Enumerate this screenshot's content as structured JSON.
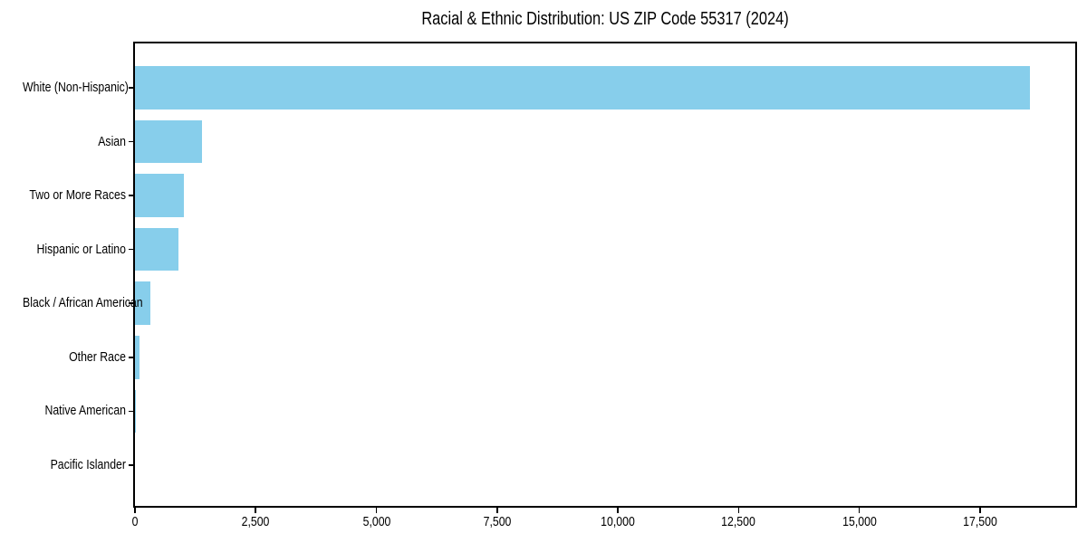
{
  "chart_data": {
    "type": "bar",
    "orientation": "horizontal",
    "title": "Racial & Ethnic Distribution: US ZIP Code 55317 (2024)",
    "categories": [
      "White (Non-Hispanic)",
      "Asian",
      "Two or More Races",
      "Hispanic or Latino",
      "Black / African American",
      "Other Race",
      "Native American",
      "Pacific Islander"
    ],
    "values": [
      18530,
      1390,
      1010,
      900,
      320,
      95,
      20,
      0
    ],
    "xlabel": "",
    "ylabel": "",
    "xlim": [
      0,
      19470
    ],
    "xticks": [
      0,
      2500,
      5000,
      7500,
      10000,
      12500,
      15000,
      17500
    ],
    "xtick_labels": [
      "0",
      "2,500",
      "5,000",
      "7,500",
      "10,000",
      "12,500",
      "15,000",
      "17,500"
    ],
    "grid": false,
    "legend": "none",
    "bar_color": "#87CEEB",
    "axis_color": "#000000",
    "text_color": "#000000",
    "background_color": "#FFFFFF"
  }
}
